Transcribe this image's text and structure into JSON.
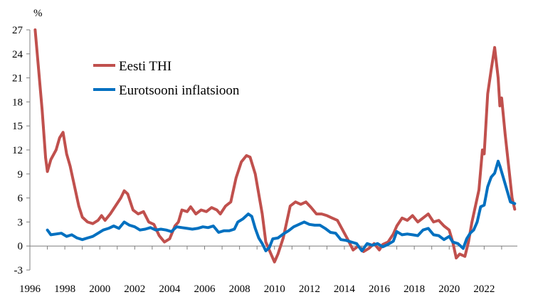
{
  "colors": {
    "eesti": "#c0504d",
    "euro": "#0070c0",
    "axis": "#7f7f7f"
  },
  "chart_data": {
    "type": "line",
    "unit_label": "%",
    "title": "",
    "xlabel": "",
    "ylabel": "%",
    "xlim": [
      1996,
      2023.9
    ],
    "ylim": [
      -3,
      27
    ],
    "y_ticks": [
      -3,
      0,
      3,
      6,
      9,
      12,
      15,
      18,
      21,
      24,
      27
    ],
    "x_ticks": [
      1996,
      1998,
      2000,
      2002,
      2004,
      2006,
      2008,
      2010,
      2012,
      2014,
      2016,
      2018,
      2020,
      2022
    ],
    "legend_position": "upper-left",
    "series": [
      {
        "name": "Eesti THI",
        "color": "#c0504d",
        "points": [
          [
            1996.3,
            27.0
          ],
          [
            1996.5,
            22.0
          ],
          [
            1996.7,
            17.0
          ],
          [
            1996.9,
            11.0
          ],
          [
            1997.0,
            9.3
          ],
          [
            1997.2,
            10.8
          ],
          [
            1997.5,
            12.0
          ],
          [
            1997.7,
            13.5
          ],
          [
            1997.9,
            14.2
          ],
          [
            1998.1,
            11.5
          ],
          [
            1998.3,
            10.0
          ],
          [
            1998.5,
            8.0
          ],
          [
            1998.8,
            5.0
          ],
          [
            1999.0,
            3.6
          ],
          [
            1999.3,
            3.0
          ],
          [
            1999.6,
            2.8
          ],
          [
            1999.9,
            3.2
          ],
          [
            2000.1,
            3.8
          ],
          [
            2000.3,
            3.2
          ],
          [
            2000.6,
            4.0
          ],
          [
            2000.9,
            5.0
          ],
          [
            2001.2,
            6.0
          ],
          [
            2001.4,
            6.9
          ],
          [
            2001.6,
            6.5
          ],
          [
            2001.9,
            4.5
          ],
          [
            2002.2,
            4.0
          ],
          [
            2002.5,
            4.3
          ],
          [
            2002.8,
            3.0
          ],
          [
            2003.1,
            2.7
          ],
          [
            2003.4,
            1.3
          ],
          [
            2003.7,
            0.5
          ],
          [
            2004.0,
            0.9
          ],
          [
            2004.3,
            2.5
          ],
          [
            2004.5,
            3.0
          ],
          [
            2004.7,
            4.5
          ],
          [
            2005.0,
            4.3
          ],
          [
            2005.2,
            4.9
          ],
          [
            2005.5,
            4.0
          ],
          [
            2005.8,
            4.5
          ],
          [
            2006.1,
            4.3
          ],
          [
            2006.4,
            4.8
          ],
          [
            2006.7,
            4.5
          ],
          [
            2006.9,
            4.0
          ],
          [
            2007.2,
            5.0
          ],
          [
            2007.5,
            5.5
          ],
          [
            2007.8,
            8.5
          ],
          [
            2008.1,
            10.5
          ],
          [
            2008.4,
            11.3
          ],
          [
            2008.6,
            11.1
          ],
          [
            2008.9,
            9.0
          ],
          [
            2009.1,
            6.5
          ],
          [
            2009.3,
            4.0
          ],
          [
            2009.5,
            0.5
          ],
          [
            2009.8,
            -1.0
          ],
          [
            2010.0,
            -2.0
          ],
          [
            2010.2,
            -1.0
          ],
          [
            2010.5,
            1.0
          ],
          [
            2010.7,
            3.0
          ],
          [
            2010.9,
            5.0
          ],
          [
            2011.2,
            5.5
          ],
          [
            2011.5,
            5.2
          ],
          [
            2011.8,
            5.5
          ],
          [
            2012.1,
            4.8
          ],
          [
            2012.4,
            4.0
          ],
          [
            2012.7,
            4.0
          ],
          [
            2013.0,
            3.8
          ],
          [
            2013.3,
            3.5
          ],
          [
            2013.6,
            3.2
          ],
          [
            2013.9,
            2.0
          ],
          [
            2014.2,
            0.8
          ],
          [
            2014.5,
            -0.5
          ],
          [
            2014.8,
            0.0
          ],
          [
            2015.1,
            -0.7
          ],
          [
            2015.4,
            -0.3
          ],
          [
            2015.7,
            0.3
          ],
          [
            2016.0,
            -0.5
          ],
          [
            2016.2,
            0.2
          ],
          [
            2016.5,
            0.5
          ],
          [
            2016.8,
            1.5
          ],
          [
            2017.0,
            2.5
          ],
          [
            2017.3,
            3.5
          ],
          [
            2017.6,
            3.2
          ],
          [
            2017.9,
            3.8
          ],
          [
            2018.2,
            3.0
          ],
          [
            2018.5,
            3.5
          ],
          [
            2018.8,
            4.0
          ],
          [
            2019.1,
            3.0
          ],
          [
            2019.4,
            3.2
          ],
          [
            2019.7,
            2.5
          ],
          [
            2020.0,
            2.0
          ],
          [
            2020.2,
            0.5
          ],
          [
            2020.4,
            -1.5
          ],
          [
            2020.6,
            -1.0
          ],
          [
            2020.9,
            -1.3
          ],
          [
            2021.1,
            0.5
          ],
          [
            2021.3,
            3.0
          ],
          [
            2021.5,
            5.0
          ],
          [
            2021.7,
            7.0
          ],
          [
            2021.9,
            12.0
          ],
          [
            2022.0,
            11.5
          ],
          [
            2022.2,
            19.0
          ],
          [
            2022.4,
            22.0
          ],
          [
            2022.6,
            24.8
          ],
          [
            2022.8,
            21.0
          ],
          [
            2022.9,
            17.5
          ],
          [
            2023.0,
            18.5
          ],
          [
            2023.2,
            14.0
          ],
          [
            2023.4,
            10.0
          ],
          [
            2023.6,
            6.0
          ],
          [
            2023.75,
            4.6
          ]
        ]
      },
      {
        "name": "Eurotsooni inflatsioon",
        "color": "#0070c0",
        "points": [
          [
            1997.0,
            2.0
          ],
          [
            1997.2,
            1.4
          ],
          [
            1997.5,
            1.5
          ],
          [
            1997.8,
            1.6
          ],
          [
            1998.1,
            1.2
          ],
          [
            1998.4,
            1.4
          ],
          [
            1998.7,
            1.0
          ],
          [
            1999.0,
            0.8
          ],
          [
            1999.3,
            1.0
          ],
          [
            1999.6,
            1.2
          ],
          [
            1999.9,
            1.6
          ],
          [
            2000.2,
            2.0
          ],
          [
            2000.5,
            2.2
          ],
          [
            2000.8,
            2.5
          ],
          [
            2001.1,
            2.2
          ],
          [
            2001.4,
            3.0
          ],
          [
            2001.7,
            2.6
          ],
          [
            2002.0,
            2.4
          ],
          [
            2002.3,
            2.0
          ],
          [
            2002.6,
            2.1
          ],
          [
            2002.9,
            2.3
          ],
          [
            2003.2,
            2.0
          ],
          [
            2003.5,
            2.1
          ],
          [
            2003.8,
            2.0
          ],
          [
            2004.1,
            1.8
          ],
          [
            2004.4,
            2.4
          ],
          [
            2004.7,
            2.3
          ],
          [
            2005.0,
            2.2
          ],
          [
            2005.3,
            2.1
          ],
          [
            2005.6,
            2.2
          ],
          [
            2005.9,
            2.4
          ],
          [
            2006.2,
            2.3
          ],
          [
            2006.5,
            2.5
          ],
          [
            2006.8,
            1.7
          ],
          [
            2007.1,
            1.9
          ],
          [
            2007.4,
            1.9
          ],
          [
            2007.7,
            2.1
          ],
          [
            2007.9,
            3.0
          ],
          [
            2008.2,
            3.4
          ],
          [
            2008.5,
            4.0
          ],
          [
            2008.7,
            3.7
          ],
          [
            2008.9,
            2.2
          ],
          [
            2009.1,
            1.0
          ],
          [
            2009.3,
            0.3
          ],
          [
            2009.5,
            -0.6
          ],
          [
            2009.7,
            -0.2
          ],
          [
            2009.9,
            0.9
          ],
          [
            2010.2,
            1.0
          ],
          [
            2010.5,
            1.5
          ],
          [
            2010.8,
            1.9
          ],
          [
            2011.1,
            2.4
          ],
          [
            2011.4,
            2.7
          ],
          [
            2011.7,
            3.0
          ],
          [
            2012.0,
            2.7
          ],
          [
            2012.3,
            2.6
          ],
          [
            2012.6,
            2.6
          ],
          [
            2012.9,
            2.2
          ],
          [
            2013.2,
            1.7
          ],
          [
            2013.5,
            1.6
          ],
          [
            2013.8,
            0.8
          ],
          [
            2014.1,
            0.7
          ],
          [
            2014.4,
            0.5
          ],
          [
            2014.7,
            0.3
          ],
          [
            2015.0,
            -0.6
          ],
          [
            2015.3,
            0.3
          ],
          [
            2015.6,
            0.1
          ],
          [
            2015.9,
            0.3
          ],
          [
            2016.2,
            -0.1
          ],
          [
            2016.5,
            0.2
          ],
          [
            2016.8,
            0.6
          ],
          [
            2017.0,
            1.8
          ],
          [
            2017.3,
            1.4
          ],
          [
            2017.6,
            1.5
          ],
          [
            2017.9,
            1.4
          ],
          [
            2018.2,
            1.3
          ],
          [
            2018.5,
            2.0
          ],
          [
            2018.8,
            2.2
          ],
          [
            2019.1,
            1.4
          ],
          [
            2019.4,
            1.3
          ],
          [
            2019.7,
            0.8
          ],
          [
            2020.0,
            1.2
          ],
          [
            2020.2,
            0.5
          ],
          [
            2020.5,
            0.3
          ],
          [
            2020.8,
            -0.3
          ],
          [
            2021.0,
            0.9
          ],
          [
            2021.2,
            1.6
          ],
          [
            2021.4,
            2.0
          ],
          [
            2021.6,
            3.0
          ],
          [
            2021.8,
            4.9
          ],
          [
            2022.0,
            5.1
          ],
          [
            2022.2,
            7.4
          ],
          [
            2022.4,
            8.6
          ],
          [
            2022.6,
            9.1
          ],
          [
            2022.8,
            10.6
          ],
          [
            2022.9,
            10.0
          ],
          [
            2023.1,
            8.5
          ],
          [
            2023.3,
            7.0
          ],
          [
            2023.5,
            5.5
          ],
          [
            2023.75,
            5.3
          ]
        ]
      }
    ]
  }
}
